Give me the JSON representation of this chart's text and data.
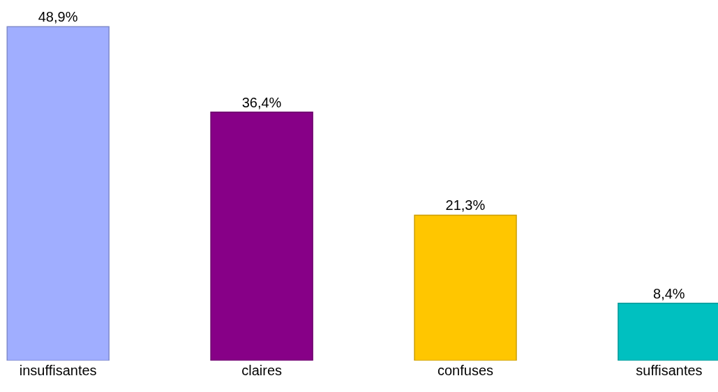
{
  "chart_data": {
    "type": "bar",
    "categories": [
      "insuffisantes",
      "claires",
      "confuses",
      "suffisantes"
    ],
    "values": [
      48.9,
      36.4,
      21.3,
      8.4
    ],
    "value_labels": [
      "48,9%",
      "36,4%",
      "21,3%",
      "8,4%"
    ],
    "colors": [
      "#a0aeff",
      "#870087",
      "#ffc600",
      "#00c0c0"
    ]
  }
}
